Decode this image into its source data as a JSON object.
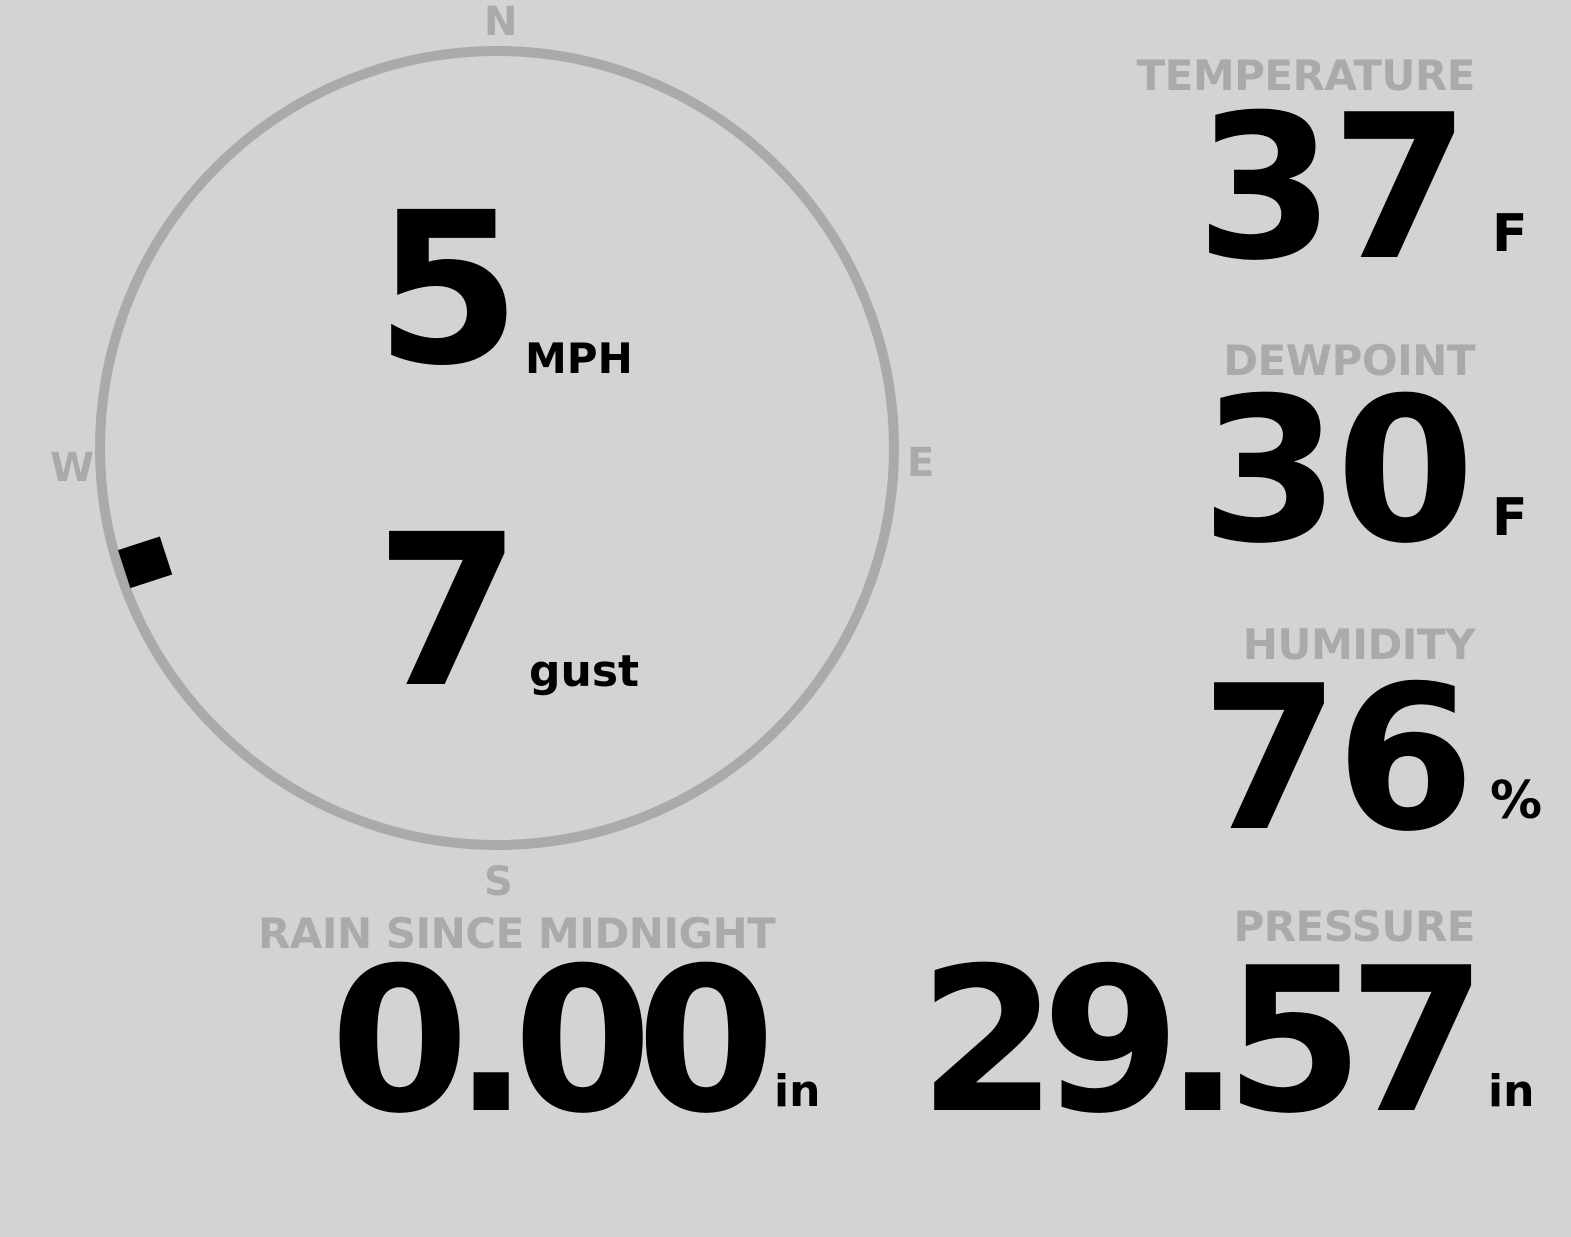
{
  "compass": {
    "north": "N",
    "east": "E",
    "south": "S",
    "west": "W",
    "wind_direction_deg": 252,
    "ring_color": "#aaaaaa",
    "marker_color": "#000000"
  },
  "wind": {
    "speed": "5",
    "speed_unit": "MPH",
    "gust": "7",
    "gust_unit": "gust"
  },
  "temperature": {
    "label": "TEMPERATURE",
    "value": "37",
    "unit": "F"
  },
  "dewpoint": {
    "label": "DEWPOINT",
    "value": "30",
    "unit": "F"
  },
  "humidity": {
    "label": "HUMIDITY",
    "value": "76",
    "unit": "%"
  },
  "rain": {
    "label": "RAIN SINCE MIDNIGHT",
    "value": "0.00",
    "unit": "in"
  },
  "pressure": {
    "label": "PRESSURE",
    "value": "29.57",
    "unit": "in"
  },
  "colors": {
    "background": "#d3d3d3",
    "label": "#aaaaaa",
    "value": "#000000"
  }
}
